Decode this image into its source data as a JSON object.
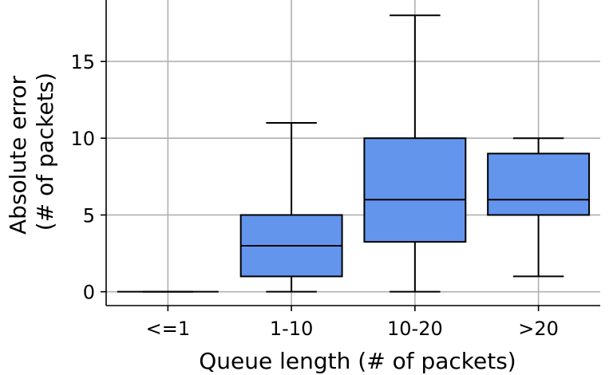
{
  "chart_data": {
    "type": "box",
    "title": "",
    "xlabel": "Queue length (# of packets)",
    "ylabel_lines": [
      "Absolute error",
      "(# of packets)"
    ],
    "ylim": [
      -0.9,
      19
    ],
    "yticks": [
      0,
      5,
      10,
      15
    ],
    "grid": true,
    "box_color": "#6495ED",
    "categories": [
      "<=1",
      "1-10",
      "10-20",
      ">20"
    ],
    "boxes": [
      {
        "category": "<=1",
        "whisker_low": 0,
        "q1": 0,
        "median": 0,
        "q3": 0,
        "whisker_high": 0
      },
      {
        "category": "1-10",
        "whisker_low": 0,
        "q1": 1,
        "median": 3,
        "q3": 5,
        "whisker_high": 11
      },
      {
        "category": "10-20",
        "whisker_low": 0,
        "q1": 3.25,
        "median": 6,
        "q3": 10,
        "whisker_high": 18
      },
      {
        "category": ">20",
        "whisker_low": 1,
        "q1": 5,
        "median": 6,
        "q3": 9,
        "whisker_high": 10
      }
    ]
  }
}
